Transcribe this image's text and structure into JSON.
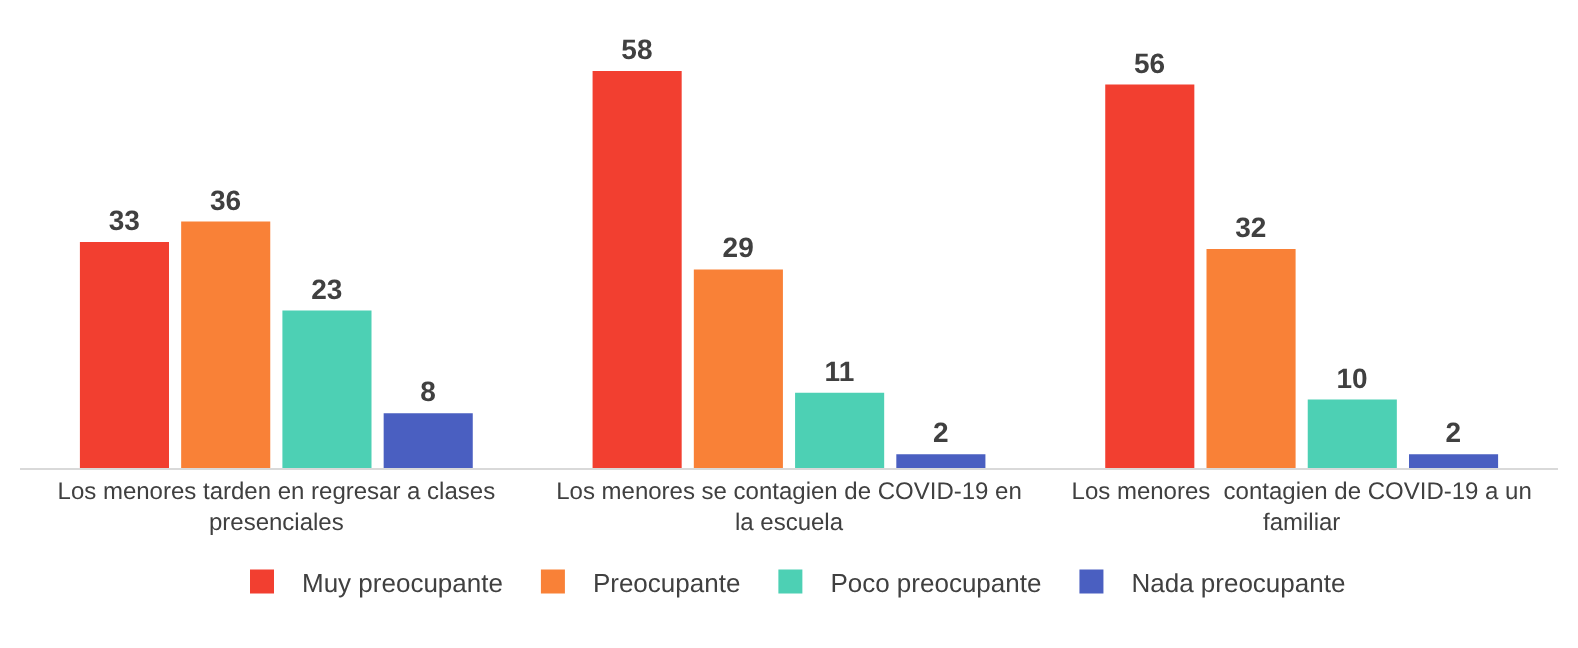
{
  "chart_data": {
    "type": "bar",
    "categories": [
      "Los menores tarden en regresar a clases presenciales",
      "Los menores se contagien de COVID-19 en la escuela",
      "Los menores  contagien de COVID-19 a un familiar"
    ],
    "series": [
      {
        "name": "Muy preocupante",
        "color": "#f23f30",
        "values": [
          33,
          58,
          56
        ]
      },
      {
        "name": "Preocupante",
        "color": "#f98137",
        "values": [
          36,
          29,
          32
        ]
      },
      {
        "name": "Poco preocupante",
        "color": "#4dd0b4",
        "values": [
          23,
          11,
          10
        ]
      },
      {
        "name": "Nada preocupante",
        "color": "#4a5fc1",
        "values": [
          8,
          2,
          2
        ]
      }
    ],
    "data_labels": true,
    "legend": "bottom",
    "grid": false
  }
}
